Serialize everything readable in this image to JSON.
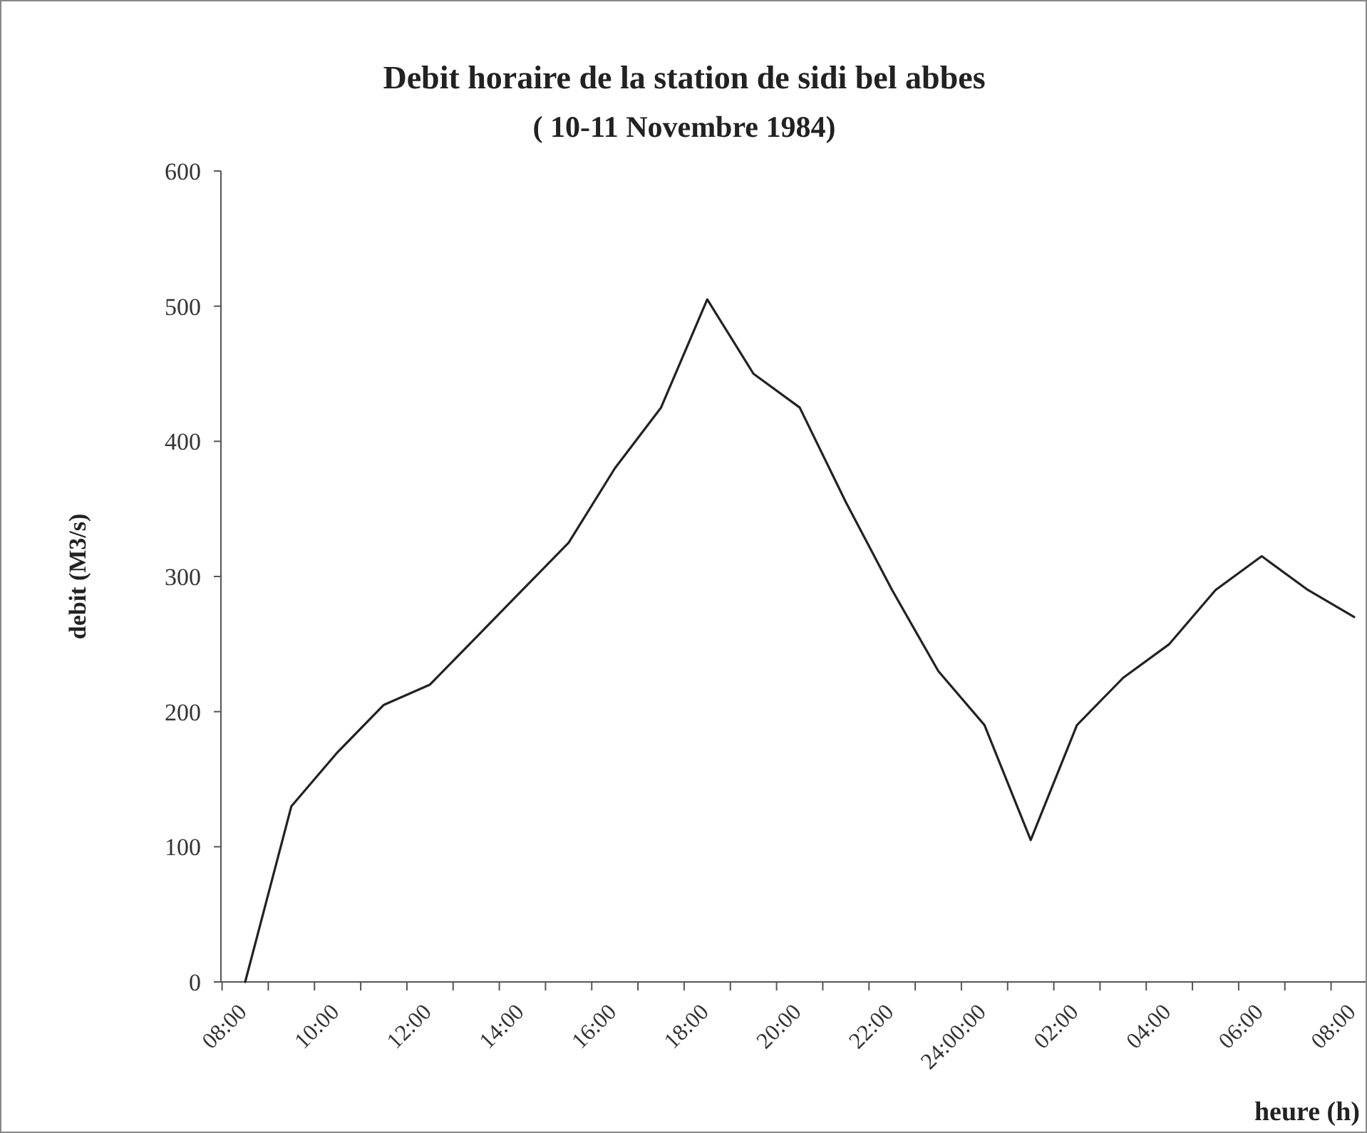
{
  "chart_data": {
    "type": "line",
    "title": "Debit horaire de la station de sidi bel abbes",
    "subtitle": "( 10-11 Novembre 1984)",
    "xlabel": "heure (h)",
    "ylabel": "debit (M3/s)",
    "categories": [
      "08:00",
      null,
      "10:00",
      null,
      "12:00",
      null,
      "14:00",
      null,
      "16:00",
      null,
      "18:00",
      null,
      "20:00",
      null,
      "22:00",
      null,
      "24:00:00",
      null,
      "02:00",
      null,
      "04:00",
      null,
      "06:00",
      null,
      "08:00"
    ],
    "values": [
      0,
      130,
      170,
      205,
      220,
      255,
      290,
      325,
      380,
      425,
      505,
      450,
      425,
      355,
      290,
      230,
      190,
      105,
      190,
      225,
      250,
      290,
      315,
      290,
      270
    ],
    "color": "#222222",
    "ylim": [
      0,
      600
    ],
    "yticks": [
      0,
      100,
      200,
      300,
      400,
      500,
      600
    ]
  }
}
